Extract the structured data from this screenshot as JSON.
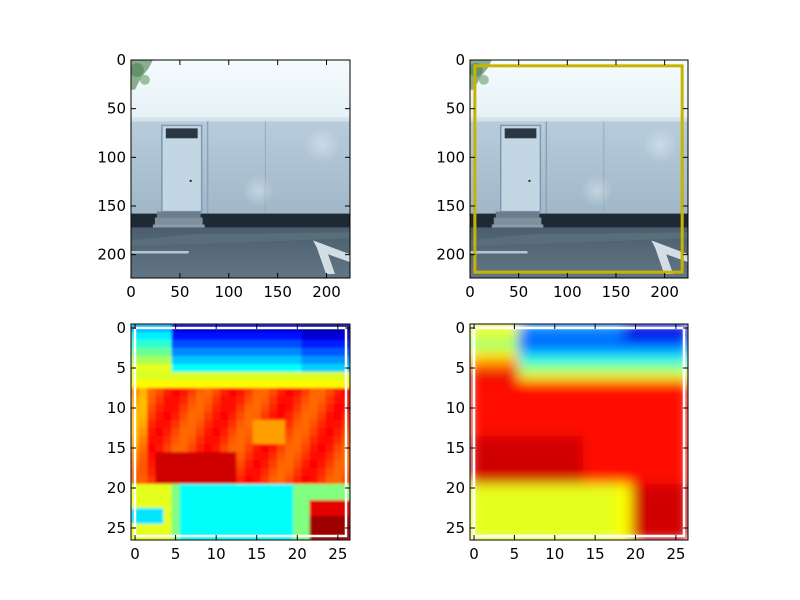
{
  "chart_data": [
    {
      "type": "image",
      "panel": "top-left",
      "content": "photo of a white portable site office with a door, steps and a paved lot",
      "xlim": [
        0,
        224
      ],
      "ylim": [
        224,
        0
      ],
      "xticks": [
        0,
        50,
        100,
        150,
        200
      ],
      "yticks": [
        0,
        50,
        100,
        150,
        200
      ],
      "tick_labels_x": [
        "0",
        "50",
        "100",
        "150",
        "200"
      ],
      "tick_labels_y": [
        "0",
        "50",
        "100",
        "150",
        "200"
      ]
    },
    {
      "type": "image",
      "panel": "top-right",
      "content": "same photo with a yellow bounding box",
      "xlim": [
        0,
        224
      ],
      "ylim": [
        224,
        0
      ],
      "box": {
        "x0": 5,
        "y0": 6,
        "x1": 218,
        "y1": 218,
        "color": "#c8b400"
      },
      "xticks": [
        0,
        50,
        100,
        150,
        200
      ],
      "yticks": [
        0,
        50,
        100,
        150,
        200
      ],
      "tick_labels_x": [
        "0",
        "50",
        "100",
        "150",
        "200"
      ],
      "tick_labels_y": [
        "0",
        "50",
        "100",
        "150",
        "200"
      ]
    },
    {
      "type": "heatmap",
      "panel": "bottom-left",
      "colormap": "jet",
      "style": "blocky",
      "grid": [
        27,
        27
      ],
      "xlim": [
        -0.5,
        26.5
      ],
      "ylim": [
        26.5,
        -0.5
      ],
      "xticks": [
        0,
        5,
        10,
        15,
        20,
        25
      ],
      "yticks": [
        0,
        5,
        10,
        15,
        20,
        25
      ],
      "tick_labels_x": [
        "0",
        "5",
        "10",
        "15",
        "20",
        "25"
      ],
      "tick_labels_y": [
        "0",
        "5",
        "10",
        "15",
        "20",
        "25"
      ]
    },
    {
      "type": "heatmap",
      "panel": "bottom-right",
      "colormap": "jet",
      "style": "smooth",
      "grid": [
        27,
        27
      ],
      "xlim": [
        -0.5,
        26.5
      ],
      "ylim": [
        26.5,
        -0.5
      ],
      "xticks": [
        0,
        5,
        10,
        15,
        20,
        25
      ],
      "yticks": [
        0,
        5,
        10,
        15,
        20,
        25
      ],
      "tick_labels_x": [
        "0",
        "5",
        "10",
        "15",
        "20",
        "25"
      ],
      "tick_labels_y": [
        "0",
        "5",
        "10",
        "15",
        "20",
        "25"
      ]
    }
  ]
}
